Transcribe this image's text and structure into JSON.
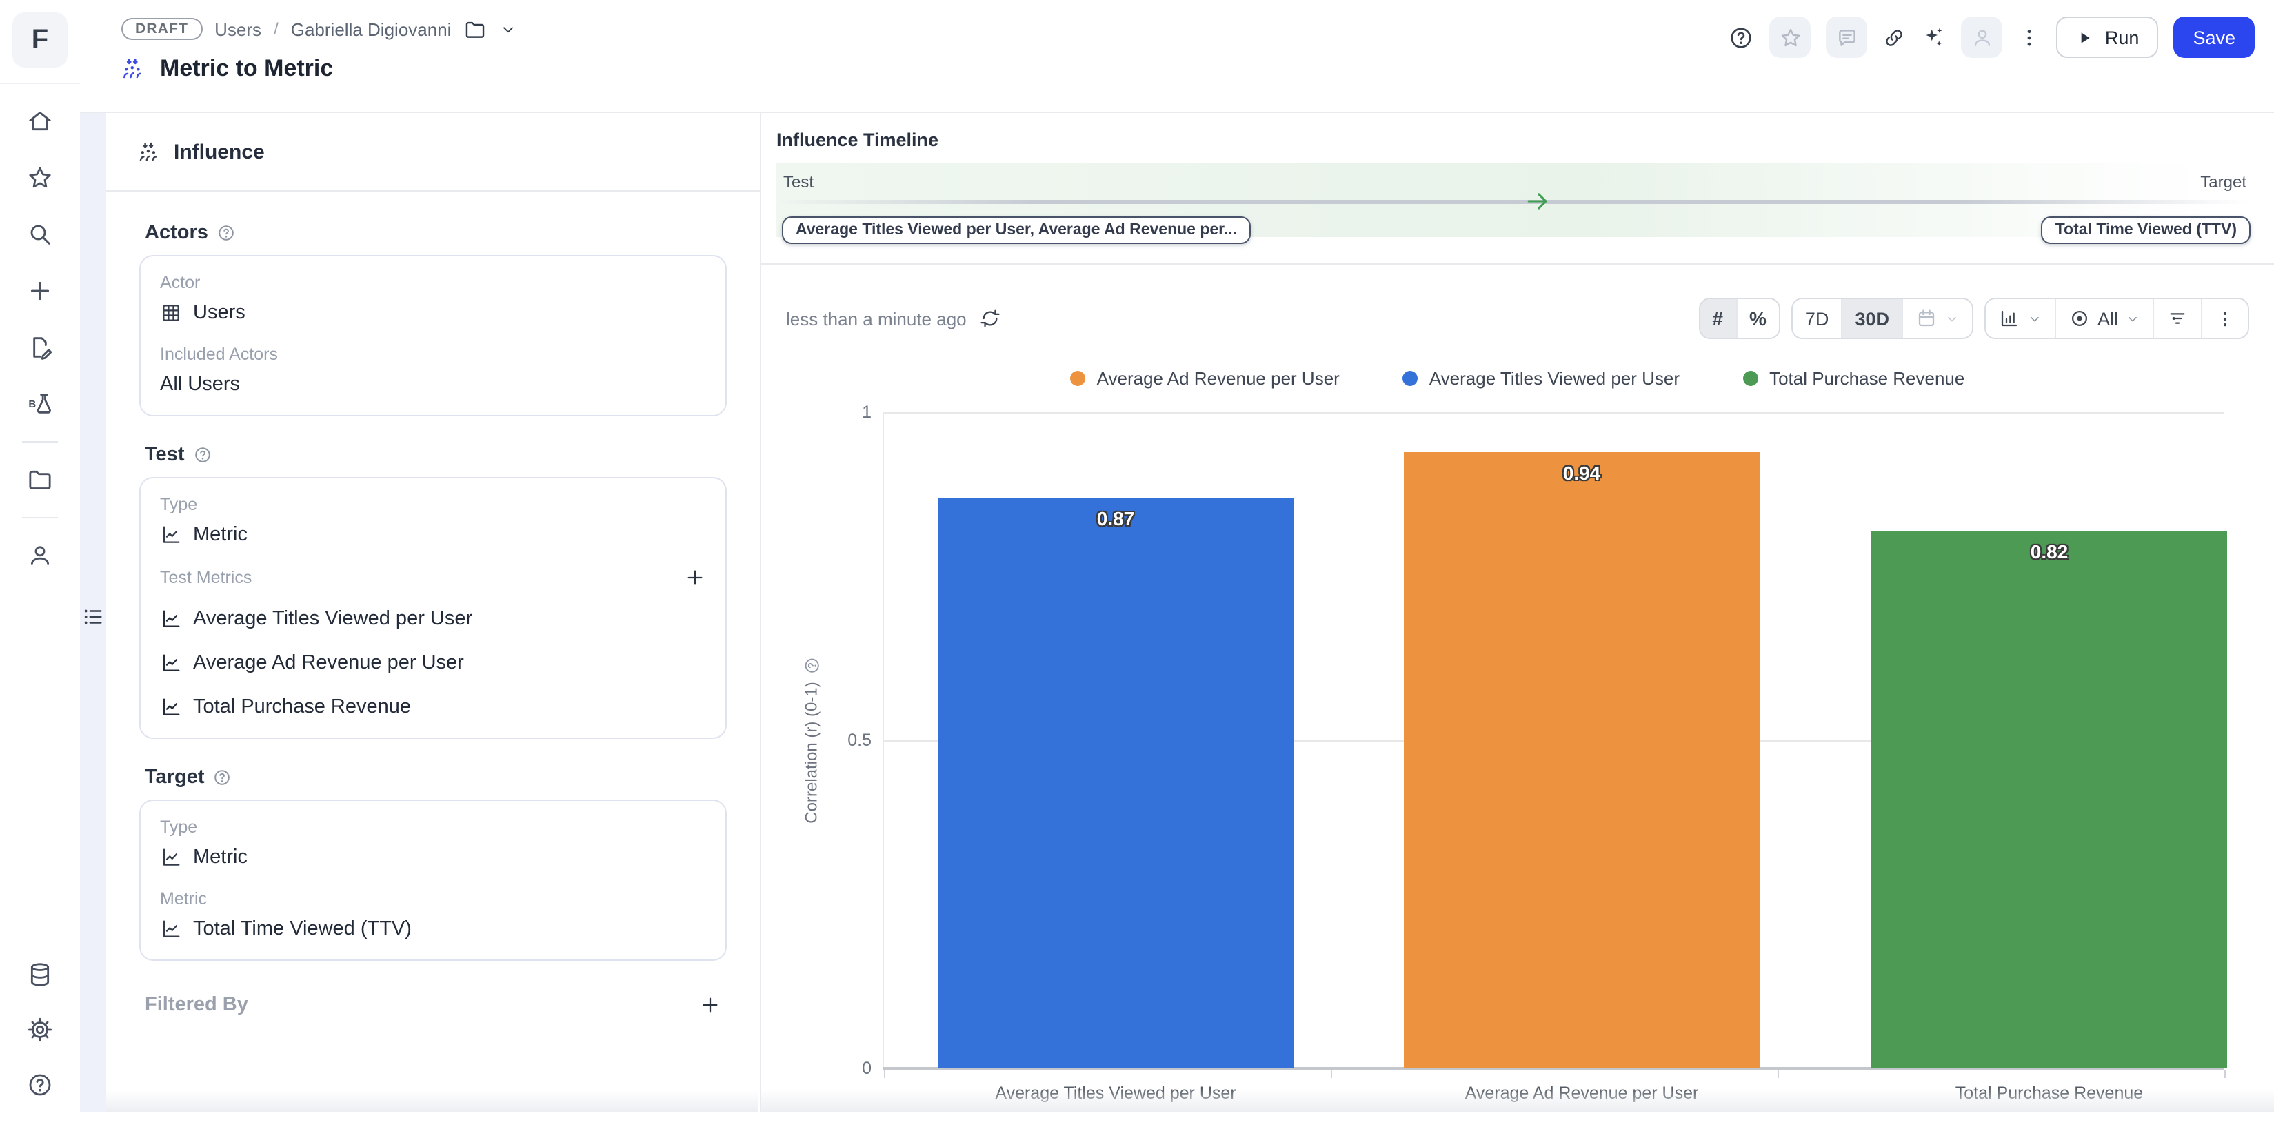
{
  "logo_letter": "F",
  "header": {
    "badge": "DRAFT",
    "breadcrumb_1": "Users",
    "breadcrumb_sep": "/",
    "breadcrumb_2": "Gabriella Digiovanni",
    "title": "Metric to Metric",
    "run_label": "Run",
    "save_label": "Save"
  },
  "panel": {
    "title": "Influence",
    "actors": {
      "heading": "Actors",
      "actor_label": "Actor",
      "actor_value": "Users",
      "included_label": "Included Actors",
      "included_value": "All Users"
    },
    "test": {
      "heading": "Test",
      "type_label": "Type",
      "type_value": "Metric",
      "metrics_label": "Test Metrics",
      "metrics": [
        "Average Titles Viewed per User",
        "Average Ad Revenue per User",
        "Total Purchase Revenue"
      ]
    },
    "target": {
      "heading": "Target",
      "type_label": "Type",
      "type_value": "Metric",
      "metric_label": "Metric",
      "metric_value": "Total Time Viewed (TTV)"
    },
    "filtered_by_label": "Filtered By"
  },
  "timeline": {
    "title": "Influence Timeline",
    "test_label": "Test",
    "target_label": "Target",
    "test_chip": "Average Titles Viewed per User, Average Ad Revenue per...",
    "target_chip": "Total Time Viewed (TTV)"
  },
  "chart_header": {
    "updated_text": "less than a minute ago",
    "count_glyph": "#",
    "percent_glyph": "%",
    "range_7d": "7D",
    "range_30d": "30D",
    "selected_range": "30D",
    "visibility_label": "All"
  },
  "chart_data": {
    "type": "bar",
    "categories": [
      "Average Titles Viewed per User",
      "Average Ad Revenue per User",
      "Total Purchase Revenue"
    ],
    "values": [
      0.87,
      0.94,
      0.82
    ],
    "colors": [
      "#3471d8",
      "#ed923f",
      "#4d9a55"
    ],
    "ylabel": "Correlation (r) (0-1)",
    "ylim": [
      0,
      1
    ],
    "yticks": [
      "1",
      "0.5",
      "0"
    ],
    "grid": "horizontal",
    "legend_position": "top-center",
    "legend": [
      {
        "label": "Average Ad Revenue per User",
        "color": "#ed923f"
      },
      {
        "label": "Average Titles Viewed per User",
        "color": "#3471d8"
      },
      {
        "label": "Total Purchase Revenue",
        "color": "#4d9a55"
      }
    ]
  }
}
